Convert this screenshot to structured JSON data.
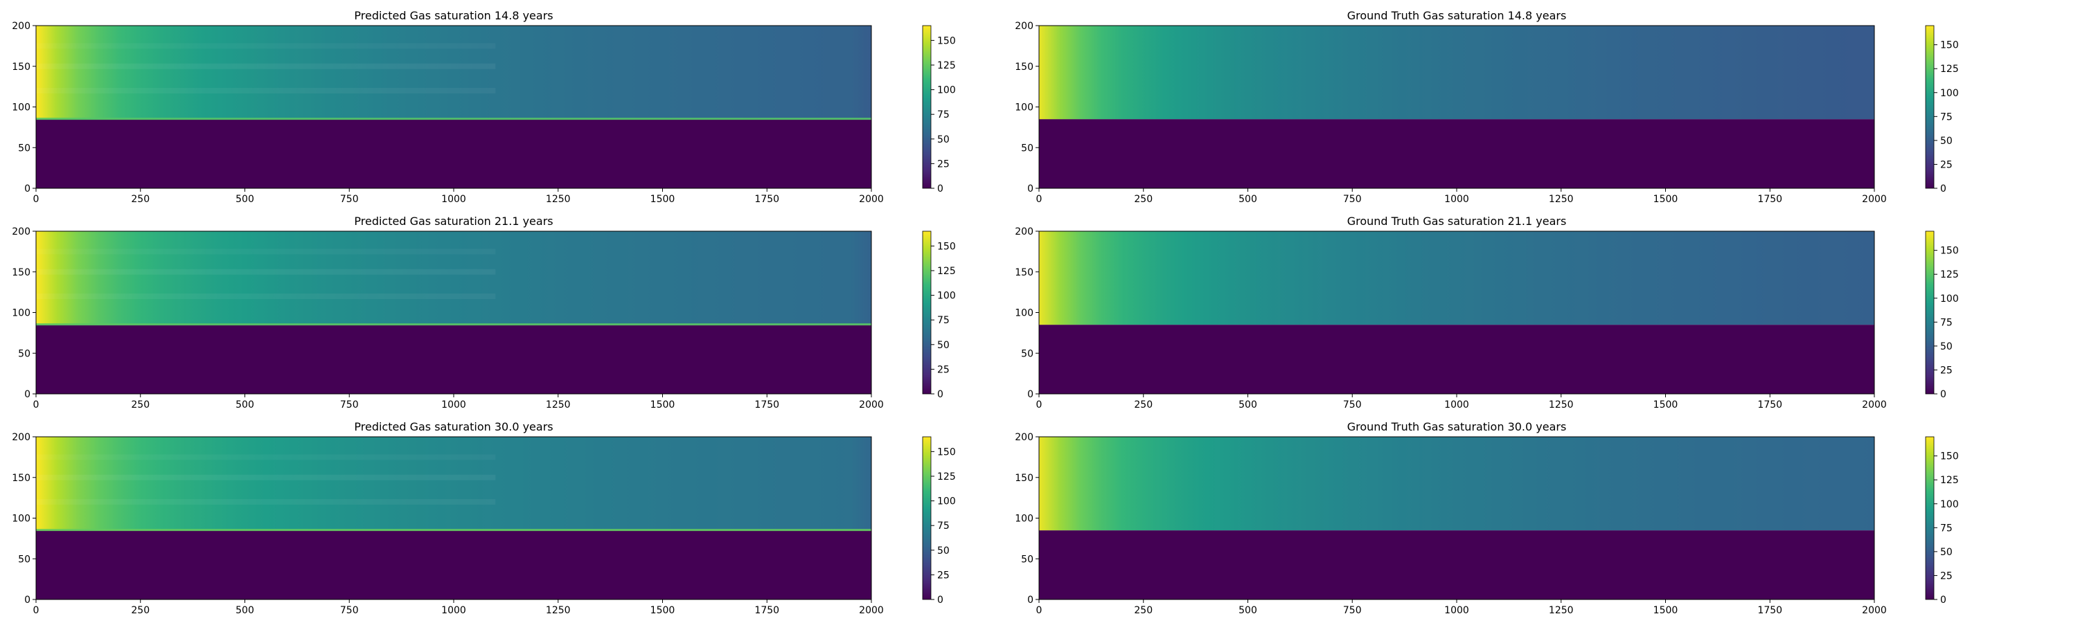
{
  "colormap": [
    "#440154",
    "#482878",
    "#3e4989",
    "#31688e",
    "#26828e",
    "#1f9e89",
    "#35b779",
    "#6ece58",
    "#b5de2b",
    "#fde725"
  ],
  "chart_data": [
    {
      "type": "heatmap",
      "title": "Predicted Gas saturation 14.8 years",
      "xlim": [
        0,
        2000
      ],
      "ylim": [
        0,
        200
      ],
      "xticks": [
        0,
        250,
        500,
        750,
        1000,
        1250,
        1500,
        1750,
        2000
      ],
      "yticks": [
        0,
        50,
        100,
        150,
        200
      ],
      "colorbar": {
        "range": [
          0,
          165
        ],
        "ticks": [
          0,
          25,
          50,
          75,
          100,
          125,
          150
        ]
      },
      "field": {
        "kind": "predicted",
        "interface_depth": 85,
        "left_value": 165,
        "near_value": 120,
        "far_value": 52,
        "right_edge_value": 48
      }
    },
    {
      "type": "heatmap",
      "title": "Ground Truth Gas saturation 14.8 years",
      "xlim": [
        0,
        2000
      ],
      "ylim": [
        0,
        200
      ],
      "xticks": [
        0,
        250,
        500,
        750,
        1000,
        1250,
        1500,
        1750,
        2000
      ],
      "yticks": [
        0,
        50,
        100,
        150,
        200
      ],
      "colorbar": {
        "range": [
          0,
          170
        ],
        "ticks": [
          0,
          25,
          50,
          75,
          100,
          125,
          150
        ]
      },
      "field": {
        "kind": "truth",
        "interface_depth": 85,
        "left_value": 165,
        "near_value": 115,
        "far_value": 48,
        "right_edge_value": 48
      }
    },
    {
      "type": "heatmap",
      "title": "Predicted Gas saturation 21.1 years",
      "xlim": [
        0,
        2000
      ],
      "ylim": [
        0,
        200
      ],
      "xticks": [
        0,
        250,
        500,
        750,
        1000,
        1250,
        1500,
        1750,
        2000
      ],
      "yticks": [
        0,
        50,
        100,
        150,
        200
      ],
      "colorbar": {
        "range": [
          0,
          165
        ],
        "ticks": [
          0,
          25,
          50,
          75,
          100,
          125,
          150
        ]
      },
      "field": {
        "kind": "predicted",
        "interface_depth": 85,
        "left_value": 165,
        "near_value": 122,
        "far_value": 58,
        "right_edge_value": 52
      }
    },
    {
      "type": "heatmap",
      "title": "Ground Truth Gas saturation 21.1 years",
      "xlim": [
        0,
        2000
      ],
      "ylim": [
        0,
        200
      ],
      "xticks": [
        0,
        250,
        500,
        750,
        1000,
        1250,
        1500,
        1750,
        2000
      ],
      "yticks": [
        0,
        50,
        100,
        150,
        200
      ],
      "colorbar": {
        "range": [
          0,
          170
        ],
        "ticks": [
          0,
          25,
          50,
          75,
          100,
          125,
          150
        ]
      },
      "field": {
        "kind": "truth",
        "interface_depth": 85,
        "left_value": 165,
        "near_value": 118,
        "far_value": 52,
        "right_edge_value": 52
      }
    },
    {
      "type": "heatmap",
      "title": "Predicted Gas saturation 30.0 years",
      "xlim": [
        0,
        2000
      ],
      "ylim": [
        0,
        200
      ],
      "xticks": [
        0,
        250,
        500,
        750,
        1000,
        1250,
        1500,
        1750,
        2000
      ],
      "yticks": [
        0,
        50,
        100,
        150,
        200
      ],
      "colorbar": {
        "range": [
          0,
          165
        ],
        "ticks": [
          0,
          25,
          50,
          75,
          100,
          125,
          150
        ]
      },
      "field": {
        "kind": "predicted",
        "interface_depth": 85,
        "left_value": 165,
        "near_value": 125,
        "far_value": 62,
        "right_edge_value": 55
      }
    },
    {
      "type": "heatmap",
      "title": "Ground Truth Gas saturation 30.0 years",
      "xlim": [
        0,
        2000
      ],
      "ylim": [
        0,
        200
      ],
      "xticks": [
        0,
        250,
        500,
        750,
        1000,
        1250,
        1500,
        1750,
        2000
      ],
      "yticks": [
        0,
        50,
        100,
        150,
        200
      ],
      "colorbar": {
        "range": [
          0,
          170
        ],
        "ticks": [
          0,
          25,
          50,
          75,
          100,
          125,
          150
        ]
      },
      "field": {
        "kind": "truth",
        "interface_depth": 85,
        "left_value": 165,
        "near_value": 120,
        "far_value": 56,
        "right_edge_value": 56
      }
    }
  ]
}
